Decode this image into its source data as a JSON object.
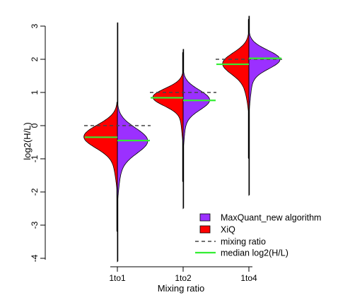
{
  "chart_data": {
    "type": "split-violin",
    "title": "",
    "xlabel": "Mixing ratio",
    "ylabel": "log2(H/L)",
    "ylim": [
      -4.2,
      3.2
    ],
    "yticks": [
      -4,
      -3,
      -2,
      -1,
      0,
      1,
      2,
      3
    ],
    "categories": [
      "1to1",
      "1to2",
      "1to4"
    ],
    "grid": false,
    "legend_position": "bottom-right",
    "series": [
      {
        "name": "MaxQuant_new algorithm",
        "side": "right",
        "color": "#9b30ff"
      },
      {
        "name": "XiQ",
        "side": "left",
        "color": "#ff0000"
      }
    ],
    "reference_lines": {
      "name": "mixing ratio",
      "values": [
        0,
        1,
        2
      ],
      "style": "dashed",
      "color": "#444444"
    },
    "medians": {
      "name": "median log2(H/L)",
      "color": "#33ee33",
      "XiQ": [
        -0.35,
        0.84,
        1.85
      ],
      "MaxQuant_new algorithm": [
        -0.45,
        0.76,
        2.03
      ]
    },
    "ranges": {
      "1to1": {
        "min": -4.1,
        "max": 3.1
      },
      "1to2": {
        "min": -2.5,
        "max": 2.3
      },
      "1to4": {
        "min": -2.1,
        "max": 3.3
      }
    }
  },
  "legend": {
    "items": [
      {
        "label": "MaxQuant_new algorithm",
        "kind": "box",
        "color": "#9b30ff"
      },
      {
        "label": "XiQ",
        "kind": "box",
        "color": "#ff0000"
      },
      {
        "label": "mixing ratio",
        "kind": "dash",
        "color": "#444444"
      },
      {
        "label": "median log2(H/L)",
        "kind": "line",
        "color": "#33ee33"
      }
    ]
  }
}
